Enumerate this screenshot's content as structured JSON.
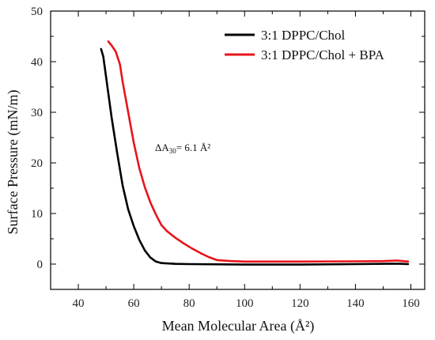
{
  "chart_data": {
    "type": "line",
    "title": "",
    "xlabel": "Mean Molecular Area (Å²)",
    "ylabel": "Surface Pressure (mN/m)",
    "xlim": [
      30,
      165
    ],
    "ylim": [
      -5,
      50
    ],
    "x_ticks": [
      40,
      60,
      80,
      100,
      120,
      140,
      160
    ],
    "y_ticks": [
      0,
      10,
      20,
      30,
      40,
      50
    ],
    "legend_position": "top-right",
    "grid": false,
    "annotation": {
      "text_main": "ΔA",
      "text_sub": "30",
      "text_rest": "= 6.1 Å²",
      "x": 70,
      "y": 22.3
    },
    "series": [
      {
        "name": "3:1 DPPC/Chol",
        "color": "#000000",
        "points": [
          [
            48.2,
            42.5
          ],
          [
            49.0,
            41.0
          ],
          [
            50,
            37
          ],
          [
            52,
            29
          ],
          [
            54,
            22
          ],
          [
            56,
            15.5
          ],
          [
            58,
            10.8
          ],
          [
            60,
            7.5
          ],
          [
            62,
            4.8
          ],
          [
            64,
            2.7
          ],
          [
            66,
            1.3
          ],
          [
            68,
            0.5
          ],
          [
            70,
            0.2
          ],
          [
            75,
            0.05
          ],
          [
            80,
            0
          ],
          [
            100,
            -0.1
          ],
          [
            120,
            -0.1
          ],
          [
            140,
            0
          ],
          [
            155,
            0.1
          ],
          [
            159,
            0
          ]
        ]
      },
      {
        "name": "3:1 DPPC/Chol + BPA",
        "color": "#e8141a",
        "points": [
          [
            50.8,
            44.0
          ],
          [
            52,
            43.2
          ],
          [
            53.5,
            42.0
          ],
          [
            55,
            39.5
          ],
          [
            56,
            36
          ],
          [
            58,
            30
          ],
          [
            60,
            24
          ],
          [
            62,
            19
          ],
          [
            64,
            15.2
          ],
          [
            66,
            12.2
          ],
          [
            68,
            9.8
          ],
          [
            70,
            7.7
          ],
          [
            72,
            6.5
          ],
          [
            75,
            5.2
          ],
          [
            78,
            4.1
          ],
          [
            81,
            3.1
          ],
          [
            84,
            2.2
          ],
          [
            87,
            1.4
          ],
          [
            90,
            0.8
          ],
          [
            95,
            0.6
          ],
          [
            100,
            0.5
          ],
          [
            120,
            0.5
          ],
          [
            140,
            0.55
          ],
          [
            150,
            0.6
          ],
          [
            155,
            0.7
          ],
          [
            159,
            0.5
          ]
        ]
      }
    ]
  }
}
